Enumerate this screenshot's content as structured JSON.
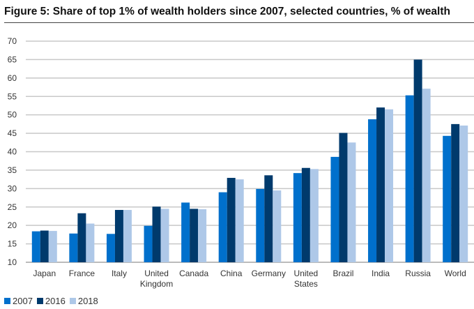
{
  "chart_data": {
    "type": "bar",
    "title": "Figure 5: Share of top 1% of wealth holders since 2007, selected countries, % of wealth",
    "xlabel": "",
    "ylabel": "",
    "ylim": [
      10,
      70
    ],
    "yticks": [
      10,
      15,
      20,
      25,
      30,
      35,
      40,
      45,
      50,
      55,
      60,
      65,
      70
    ],
    "grid": true,
    "legend_position": "bottom-left",
    "categories": [
      [
        "Japan"
      ],
      [
        "France"
      ],
      [
        "Italy"
      ],
      [
        "United",
        "Kingdom"
      ],
      [
        "Canada"
      ],
      [
        "China"
      ],
      [
        "Germany"
      ],
      [
        "United",
        "States"
      ],
      [
        "Brazil"
      ],
      [
        "India"
      ],
      [
        "Russia"
      ],
      [
        "World"
      ]
    ],
    "series": [
      {
        "name": "2007",
        "color": "#0070cc",
        "values": [
          18.4,
          17.8,
          17.7,
          19.9,
          26.2,
          29.0,
          29.9,
          34.2,
          38.6,
          48.8,
          55.3,
          44.3
        ]
      },
      {
        "name": "2016",
        "color": "#003a6c",
        "values": [
          18.6,
          23.3,
          24.2,
          25.1,
          24.5,
          32.9,
          33.6,
          35.6,
          45.1,
          52.0,
          65.0,
          47.5
        ]
      },
      {
        "name": "2018",
        "color": "#aec8e8",
        "values": [
          18.5,
          20.5,
          24.2,
          24.5,
          24.4,
          32.5,
          29.5,
          35.3,
          42.5,
          51.5,
          57.1,
          47.1
        ]
      }
    ]
  }
}
